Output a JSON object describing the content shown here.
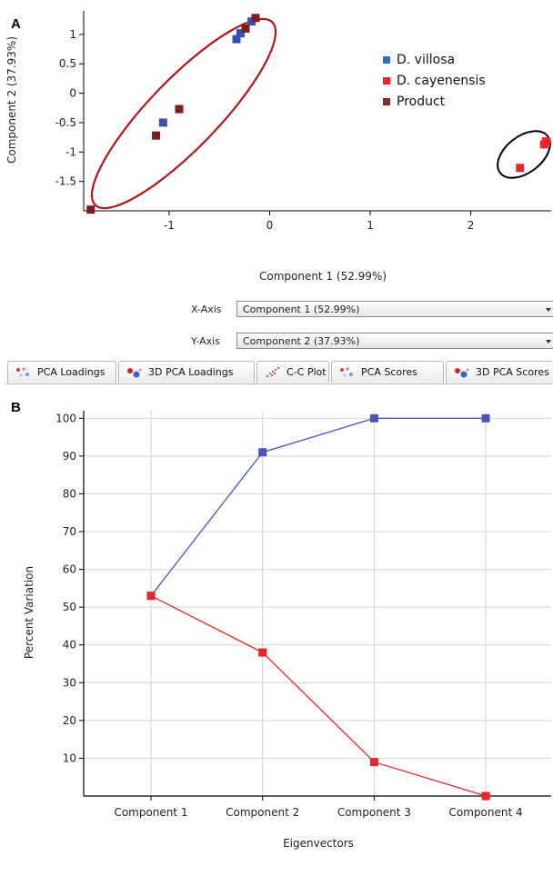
{
  "panel_a": {
    "letter": "A",
    "x_axis_label": "Component 1 (52.99%)",
    "y_axis_label": "Component 2 (37.93%)",
    "legend": [
      {
        "label": "D. villosa",
        "color": "#2a6ec0"
      },
      {
        "label": "D. cayenensis",
        "color": "#e8262a"
      },
      {
        "label": "Product",
        "color": "#7f2a2a"
      }
    ],
    "controls": {
      "x_label": "X-Axis",
      "x_value": "Component 1 (52.99%)",
      "y_label": "Y-Axis",
      "y_value": "Component 2 (37.93%)"
    },
    "tabs": [
      {
        "label": "PCA Loadings",
        "icon": "pca-loadings-icon"
      },
      {
        "label": "3D PCA Loadings",
        "icon": "3d-pca-loadings-icon"
      },
      {
        "label": "C-C Plot",
        "icon": "cc-plot-icon"
      },
      {
        "label": "PCA Scores",
        "icon": "pca-scores-icon"
      },
      {
        "label": "3D PCA Scores",
        "icon": "3d-pca-scores-icon"
      }
    ]
  },
  "panel_b": {
    "letter": "B"
  },
  "chart_data": [
    {
      "type": "scatter",
      "xlabel": "Component 1 (52.99%)",
      "ylabel": "Component 2 (37.93%)",
      "xlim": [
        -1.85,
        2.8
      ],
      "ylim": [
        -2.0,
        1.4
      ],
      "xticks": [
        -1,
        0,
        1,
        2
      ],
      "xtick_labels": [
        "-1",
        "0",
        "1",
        "2"
      ],
      "yticks": [
        1,
        0.5,
        0,
        -0.5,
        -1,
        -1.5
      ],
      "ytick_labels": [
        "1",
        "0.5",
        "0",
        "-0.5",
        "-1",
        "-1.5"
      ],
      "legend_position": "top-right",
      "series": [
        {
          "name": "D. villosa",
          "color": "#3a4fb0",
          "points": [
            [
              -0.33,
              0.92
            ],
            [
              -0.29,
              1.02
            ],
            [
              -0.18,
              1.22
            ],
            [
              -1.06,
              -0.5
            ]
          ]
        },
        {
          "name": "D. cayenensis",
          "color": "#e8262a",
          "points": [
            [
              2.49,
              -1.27
            ],
            [
              2.73,
              -0.87
            ],
            [
              2.75,
              -0.82
            ]
          ]
        },
        {
          "name": "Product",
          "color": "#7b1e1e",
          "points": [
            [
              -0.24,
              1.1
            ],
            [
              -0.14,
              1.28
            ],
            [
              -1.13,
              -0.72
            ],
            [
              -0.9,
              -0.27
            ],
            [
              -1.78,
              -1.98
            ]
          ]
        }
      ],
      "grid": false
    },
    {
      "type": "line",
      "categories": [
        "Component 1",
        "Component 2",
        "Component 3",
        "Component 4"
      ],
      "xlabel": "Eigenvectors",
      "ylabel": "Percent Variation",
      "ylim": [
        0,
        102
      ],
      "yticks": [
        10,
        20,
        30,
        40,
        50,
        60,
        70,
        80,
        90,
        100
      ],
      "ytick_labels": [
        "10",
        "20",
        "30",
        "40",
        "50",
        "60",
        "70",
        "80",
        "90",
        "100"
      ],
      "grid": true,
      "series": [
        {
          "color": "#4a55b8",
          "values": [
            53,
            91,
            100,
            100
          ]
        },
        {
          "color": "#e8262a",
          "values": [
            53,
            38,
            9,
            0
          ]
        }
      ]
    }
  ]
}
